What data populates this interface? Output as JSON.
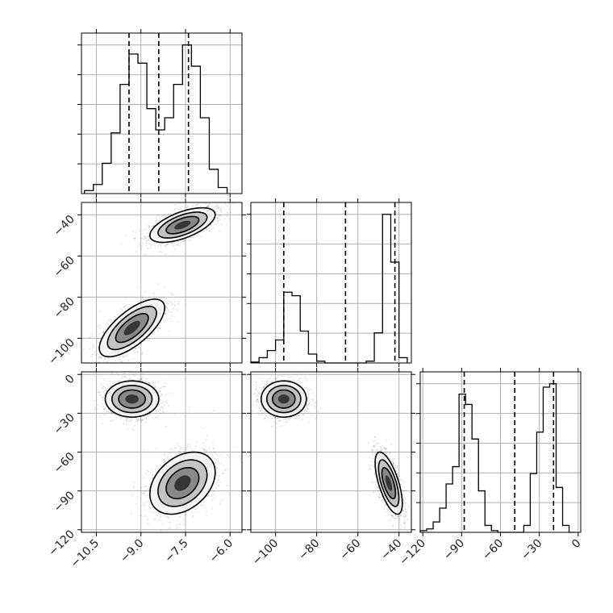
{
  "chart_data": {
    "type": "corner",
    "grid": true,
    "axis_ticks": [
      [
        -10.5,
        -9.0,
        -7.5,
        -6.0
      ],
      [
        -40,
        -60,
        -80,
        -100
      ],
      [
        0,
        -30,
        -60,
        -90,
        -120
      ]
    ],
    "axis_tick_labels": [
      [
        "−10.5",
        "−9.0",
        "−7.5",
        "−6.0"
      ],
      [
        "−40",
        "−60",
        "−80",
        "−100"
      ],
      [
        "0",
        "−30",
        "−60",
        "−90",
        "−120"
      ]
    ],
    "axis_ranges": [
      [
        -11.0,
        -5.6
      ],
      [
        -112,
        -34
      ],
      [
        -122,
        2
      ]
    ],
    "histograms": [
      {
        "parameter_index": 0,
        "bins": [
          -10.9,
          -10.6,
          -10.3,
          -10.0,
          -9.7,
          -9.4,
          -9.1,
          -8.8,
          -8.5,
          -8.2,
          -7.9,
          -7.6,
          -7.3,
          -7.0,
          -6.7,
          -6.4,
          -6.1
        ],
        "counts": [
          1,
          3,
          10,
          20,
          36,
          46,
          43,
          28,
          21,
          25,
          36,
          49,
          42,
          25,
          8,
          2
        ],
        "quantiles": [
          -9.4,
          -8.4,
          -7.4
        ]
      },
      {
        "parameter_index": 1,
        "bins": [
          -112,
          -108,
          -104,
          -100,
          -96,
          -92,
          -88,
          -84,
          -80,
          -76,
          -72,
          -68,
          -64,
          -60,
          -56,
          -52,
          -48,
          -44,
          -40,
          -36
        ],
        "counts": [
          0.5,
          3,
          7,
          13,
          40,
          38,
          18,
          5,
          1,
          0,
          0,
          0,
          0,
          0,
          1,
          17,
          84,
          57,
          3
        ],
        "quantiles": [
          -96,
          -66,
          -42
        ]
      },
      {
        "parameter_index": 2,
        "bins": [
          -122,
          -117,
          -112,
          -107,
          -102,
          -97,
          -92,
          -87,
          -82,
          -77,
          -72,
          -67,
          -62,
          -57,
          -52,
          -47,
          -42,
          -37,
          -32,
          -27,
          -22,
          -17,
          -12,
          -7,
          -2
        ],
        "counts": [
          0.5,
          1,
          3,
          7,
          14,
          19,
          40,
          37,
          27,
          12,
          2,
          0.5,
          0,
          0,
          0,
          0,
          2,
          17,
          29,
          42,
          43,
          13,
          2,
          0
        ],
        "quantiles": [
          -88,
          -49,
          -19
        ]
      }
    ],
    "scatter_panels": [
      {
        "x_param": 0,
        "y_param": 1,
        "clusters": [
          {
            "center": [
              -7.6,
              -45
            ],
            "spread": [
              0.55,
              4.2
            ],
            "correlation": 0.6
          },
          {
            "center": [
              -9.3,
              -95
            ],
            "spread": [
              0.55,
              7.0
            ],
            "correlation": 0.7
          }
        ]
      },
      {
        "x_param": 0,
        "y_param": 2,
        "clusters": [
          {
            "center": [
              -9.3,
              -19
            ],
            "spread": [
              0.45,
              7.0
            ],
            "correlation": 0.0
          },
          {
            "center": [
              -7.6,
              -84
            ],
            "spread": [
              0.55,
              12.0
            ],
            "correlation": 0.35
          }
        ]
      },
      {
        "x_param": 1,
        "y_param": 2,
        "clusters": [
          {
            "center": [
              -96,
              -19
            ],
            "spread": [
              5.5,
              7.0
            ],
            "correlation": 0.0
          },
          {
            "center": [
              -45,
              -84
            ],
            "spread": [
              3.3,
              12.0
            ],
            "correlation": -0.65
          }
        ]
      }
    ]
  }
}
